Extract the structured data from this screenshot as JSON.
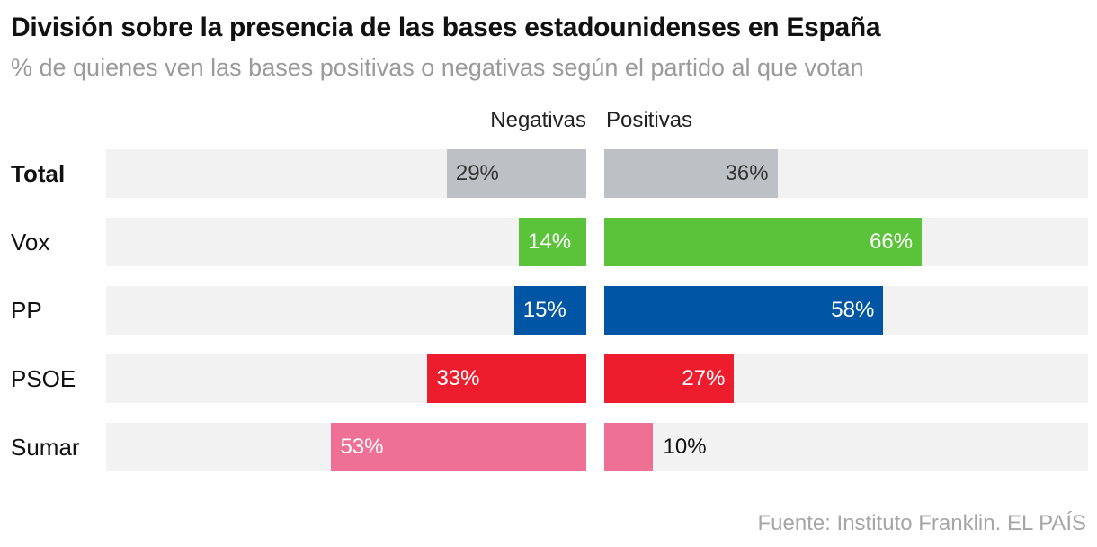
{
  "chart_data": {
    "type": "bar",
    "orientation": "diverging-horizontal",
    "title": "División sobre la presencia de las bases estadounidenses en España",
    "subtitle": "% de quienes ven las bases positivas o negativas según el partido al que votan",
    "series_labels": {
      "negative": "Negativas",
      "positive": "Positivas"
    },
    "xlim": [
      0,
      100
    ],
    "rows": [
      {
        "label": "Total",
        "bold": true,
        "negative": 29,
        "positive": 36,
        "neg_label": "29%",
        "pos_label": "36%",
        "color": "#bdc1c5",
        "text_color": "#333333"
      },
      {
        "label": "Vox",
        "bold": false,
        "negative": 14,
        "positive": 66,
        "neg_label": "14%",
        "pos_label": "66%",
        "color": "#5ac33a",
        "text_color": "#ffffff"
      },
      {
        "label": "PP",
        "bold": false,
        "negative": 15,
        "positive": 58,
        "neg_label": "15%",
        "pos_label": "58%",
        "color": "#0055a5",
        "text_color": "#ffffff"
      },
      {
        "label": "PSOE",
        "bold": false,
        "negative": 33,
        "positive": 27,
        "neg_label": "33%",
        "pos_label": "27%",
        "color": "#ee1d2e",
        "text_color": "#ffffff"
      },
      {
        "label": "Sumar",
        "bold": false,
        "negative": 53,
        "positive": 10,
        "neg_label": "53%",
        "pos_label": "10%",
        "color": "#ee7095",
        "text_color": "#ffffff",
        "pos_label_outside": true
      }
    ]
  },
  "source": "Fuente: Instituto Franklin. EL PAÍS"
}
